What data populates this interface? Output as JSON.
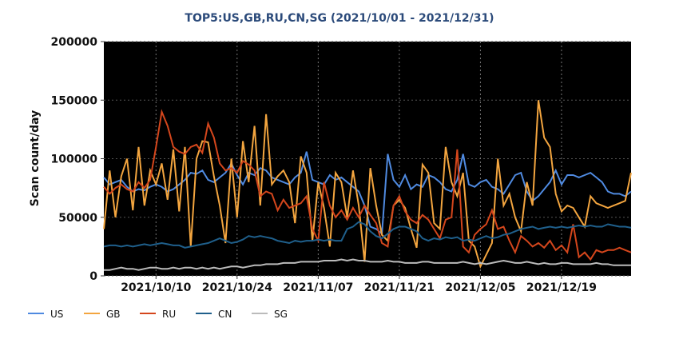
{
  "chart_data": {
    "type": "line",
    "title": "TOP5:US,GB,RU,CN,SG (2021/10/01 - 2021/12/31)",
    "y_label": "Scan count/day",
    "x": [
      "2021/10/01",
      "2021/10/02",
      "2021/10/03",
      "2021/10/04",
      "2021/10/05",
      "2021/10/06",
      "2021/10/07",
      "2021/10/08",
      "2021/10/09",
      "2021/10/10",
      "2021/10/11",
      "2021/10/12",
      "2021/10/13",
      "2021/10/14",
      "2021/10/15",
      "2021/10/16",
      "2021/10/17",
      "2021/10/18",
      "2021/10/19",
      "2021/10/20",
      "2021/10/21",
      "2021/10/22",
      "2021/10/23",
      "2021/10/24",
      "2021/10/25",
      "2021/10/26",
      "2021/10/27",
      "2021/10/28",
      "2021/10/29",
      "2021/10/30",
      "2021/10/31",
      "2021/11/01",
      "2021/11/02",
      "2021/11/03",
      "2021/11/04",
      "2021/11/05",
      "2021/11/06",
      "2021/11/07",
      "2021/11/08",
      "2021/11/09",
      "2021/11/10",
      "2021/11/11",
      "2021/11/12",
      "2021/11/13",
      "2021/11/14",
      "2021/11/15",
      "2021/11/16",
      "2021/11/17",
      "2021/11/18",
      "2021/11/19",
      "2021/11/20",
      "2021/11/21",
      "2021/11/22",
      "2021/11/23",
      "2021/11/24",
      "2021/11/25",
      "2021/11/26",
      "2021/11/27",
      "2021/11/28",
      "2021/11/29",
      "2021/11/30",
      "2021/12/01",
      "2021/12/02",
      "2021/12/03",
      "2021/12/04",
      "2021/12/05",
      "2021/12/06",
      "2021/12/07",
      "2021/12/08",
      "2021/12/09",
      "2021/12/10",
      "2021/12/11",
      "2021/12/12",
      "2021/12/13",
      "2021/12/14",
      "2021/12/15",
      "2021/12/16",
      "2021/12/17",
      "2021/12/18",
      "2021/12/19",
      "2021/12/20",
      "2021/12/21",
      "2021/12/22",
      "2021/12/23",
      "2021/12/24",
      "2021/12/25",
      "2021/12/26",
      "2021/12/27",
      "2021/12/28",
      "2021/12/29",
      "2021/12/30",
      "2021/12/31"
    ],
    "xlim": [
      "2021/10/01",
      "2021/12/31"
    ],
    "xticks": [
      "2021/10/10",
      "2021/10/24",
      "2021/11/07",
      "2021/11/21",
      "2021/12/05",
      "2021/12/19"
    ],
    "ylim": [
      0,
      200000
    ],
    "yticks": [
      0,
      50000,
      100000,
      150000,
      200000
    ],
    "grid": true,
    "series": [
      {
        "name": "US",
        "color": "#4f8ae0",
        "values": [
          84000,
          78000,
          80000,
          82000,
          76000,
          72000,
          74000,
          73000,
          76000,
          78000,
          76000,
          72000,
          74000,
          78000,
          82000,
          88000,
          87000,
          90000,
          82000,
          80000,
          84000,
          88000,
          96000,
          86000,
          78000,
          88000,
          86000,
          92000,
          90000,
          84000,
          82000,
          80000,
          78000,
          84000,
          88000,
          106000,
          82000,
          80000,
          78000,
          86000,
          82000,
          84000,
          80000,
          76000,
          72000,
          60000,
          42000,
          40000,
          36000,
          104000,
          82000,
          76000,
          86000,
          74000,
          78000,
          76000,
          86000,
          84000,
          80000,
          74000,
          72000,
          82000,
          104000,
          78000,
          76000,
          80000,
          82000,
          76000,
          74000,
          70000,
          78000,
          86000,
          88000,
          72000,
          64000,
          68000,
          74000,
          80000,
          90000,
          78000,
          86000,
          86000,
          84000,
          86000,
          88000,
          84000,
          80000,
          72000,
          70000,
          70000,
          68000,
          72000
        ]
      },
      {
        "name": "GB",
        "color": "#f3a53f",
        "values": [
          40000,
          90000,
          50000,
          85000,
          100000,
          56000,
          110000,
          60000,
          90000,
          78000,
          96000,
          65000,
          108000,
          55000,
          110000,
          25000,
          100000,
          115000,
          114000,
          85000,
          60000,
          28000,
          100000,
          50000,
          115000,
          80000,
          128000,
          60000,
          138000,
          78000,
          85000,
          90000,
          80000,
          45000,
          102000,
          88000,
          30000,
          80000,
          58000,
          25000,
          88000,
          80000,
          50000,
          90000,
          60000,
          12000,
          92000,
          60000,
          35000,
          30000,
          60000,
          65000,
          58000,
          40000,
          24000,
          95000,
          88000,
          45000,
          40000,
          110000,
          80000,
          68000,
          88000,
          30000,
          25000,
          8000,
          18000,
          28000,
          100000,
          60000,
          70000,
          50000,
          38000,
          80000,
          60000,
          150000,
          118000,
          110000,
          70000,
          55000,
          60000,
          58000,
          50000,
          42000,
          68000,
          62000,
          60000,
          58000,
          60000,
          62000,
          64000,
          88000
        ]
      },
      {
        "name": "RU",
        "color": "#d4461c",
        "values": [
          76000,
          70000,
          75000,
          78000,
          74000,
          72000,
          80000,
          75000,
          82000,
          110000,
          140000,
          128000,
          110000,
          106000,
          104000,
          110000,
          112000,
          105000,
          130000,
          118000,
          96000,
          90000,
          92000,
          88000,
          98000,
          95000,
          90000,
          68000,
          72000,
          70000,
          56000,
          65000,
          58000,
          60000,
          62000,
          68000,
          40000,
          30000,
          80000,
          60000,
          50000,
          56000,
          48000,
          58000,
          50000,
          60000,
          52000,
          45000,
          28000,
          25000,
          60000,
          68000,
          55000,
          48000,
          45000,
          52000,
          48000,
          40000,
          32000,
          48000,
          50000,
          108000,
          25000,
          20000,
          35000,
          40000,
          44000,
          56000,
          40000,
          42000,
          30000,
          20000,
          34000,
          30000,
          25000,
          28000,
          24000,
          30000,
          22000,
          26000,
          20000,
          44000,
          16000,
          20000,
          14000,
          22000,
          20000,
          22000,
          22000,
          24000,
          22000,
          20000
        ]
      },
      {
        "name": "CN",
        "color": "#1f5f8b",
        "values": [
          25000,
          26000,
          26000,
          25000,
          26000,
          25000,
          26000,
          27000,
          26000,
          27000,
          28000,
          27000,
          26000,
          26000,
          24000,
          25000,
          26000,
          27000,
          28000,
          30000,
          32000,
          30000,
          28000,
          29000,
          31000,
          34000,
          33000,
          34000,
          33000,
          32000,
          30000,
          29000,
          28000,
          30000,
          29000,
          30000,
          30000,
          31000,
          30000,
          31000,
          30000,
          30000,
          40000,
          42000,
          46000,
          44000,
          38000,
          34000,
          32000,
          36000,
          40000,
          42000,
          42000,
          40000,
          38000,
          32000,
          30000,
          32000,
          31000,
          33000,
          32000,
          33000,
          30000,
          31000,
          30000,
          32000,
          34000,
          32000,
          33000,
          35000,
          36000,
          38000,
          40000,
          41000,
          42000,
          40000,
          41000,
          42000,
          41000,
          42000,
          41000,
          42000,
          43000,
          42000,
          43000,
          42000,
          42000,
          44000,
          43000,
          42000,
          42000,
          41000
        ]
      },
      {
        "name": "SG",
        "color": "#bbbbbb",
        "values": [
          5000,
          5000,
          6000,
          7000,
          6000,
          6000,
          5000,
          6000,
          7000,
          7000,
          6000,
          6000,
          7000,
          6000,
          7000,
          7000,
          6000,
          7000,
          6000,
          7000,
          6000,
          7000,
          8000,
          8000,
          7000,
          8000,
          9000,
          9000,
          10000,
          10000,
          10000,
          11000,
          11000,
          11000,
          12000,
          12000,
          12000,
          12000,
          13000,
          13000,
          13000,
          14000,
          13000,
          14000,
          13000,
          13000,
          12000,
          12000,
          12000,
          13000,
          12000,
          12000,
          11000,
          11000,
          11000,
          12000,
          12000,
          11000,
          11000,
          11000,
          11000,
          11000,
          12000,
          11000,
          10000,
          11000,
          10000,
          11000,
          12000,
          13000,
          12000,
          11000,
          11000,
          12000,
          11000,
          10000,
          11000,
          10000,
          10000,
          11000,
          11000,
          10000,
          10000,
          10000,
          10000,
          11000,
          10000,
          10000,
          9000,
          9000,
          9000,
          9000
        ]
      }
    ]
  }
}
